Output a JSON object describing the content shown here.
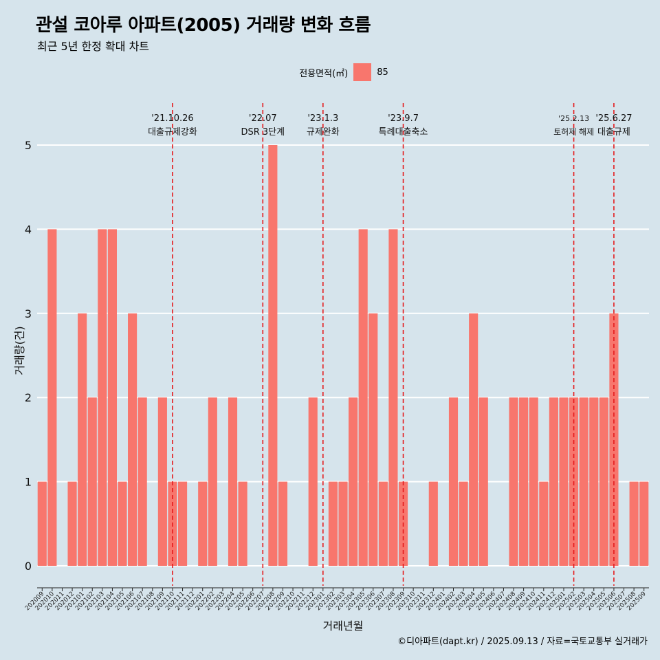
{
  "title": "관설 코아루 아파트(2005) 거래량 변화 흐름",
  "subtitle": "최근 5년 한정 확대 차트",
  "legend": {
    "title": "전용면적(㎡)",
    "items": [
      {
        "label": "85",
        "color": "#f8766d"
      }
    ]
  },
  "caption": "©디아파트(dapt.kr) / 2025.09.13 / 자료=국토교통부 실거래가",
  "colors": {
    "background": "#d6e4ec",
    "bar": "#f8766d",
    "grid": "#ffffff",
    "event_line": "#e41a1c"
  },
  "chart_data": {
    "type": "bar",
    "xlabel": "거래년월",
    "ylabel": "거래량(건)",
    "ylim": [
      0,
      5
    ],
    "yticks": [
      0,
      1,
      2,
      3,
      4,
      5
    ],
    "grid": true,
    "legend_position": "top",
    "categories": [
      "202009",
      "202010",
      "202011",
      "202012",
      "202101",
      "202102",
      "202103",
      "202104",
      "202105",
      "202106",
      "202107",
      "202108",
      "202109",
      "202110",
      "202111",
      "202112",
      "202201",
      "202202",
      "202203",
      "202204",
      "202205",
      "202206",
      "202207",
      "202208",
      "202209",
      "202210",
      "202211",
      "202212",
      "202301",
      "202302",
      "202303",
      "202304",
      "202305",
      "202306",
      "202307",
      "202308",
      "202309",
      "202310",
      "202311",
      "202312",
      "202401",
      "202402",
      "202403",
      "202404",
      "202405",
      "202406",
      "202407",
      "202408",
      "202409",
      "202410",
      "202411",
      "202412",
      "202501",
      "202502",
      "202503",
      "202504",
      "202505",
      "202506",
      "202507",
      "202508",
      "202509"
    ],
    "series": [
      {
        "name": "85",
        "values": [
          1,
          4,
          0,
          1,
          3,
          2,
          4,
          4,
          1,
          3,
          2,
          0,
          2,
          1,
          1,
          0,
          1,
          2,
          0,
          2,
          1,
          0,
          0,
          5,
          1,
          0,
          0,
          2,
          0,
          1,
          1,
          2,
          4,
          3,
          1,
          4,
          1,
          0,
          0,
          1,
          0,
          2,
          1,
          3,
          2,
          0,
          0,
          2,
          2,
          2,
          1,
          2,
          2,
          2,
          2,
          2,
          2,
          3,
          0,
          1,
          1
        ]
      }
    ],
    "annotations": [
      {
        "date": "'21.10.26",
        "label": "대출규제강화",
        "at": "202110"
      },
      {
        "date": "'22.07",
        "label": "DSR 3단계",
        "at": "202207"
      },
      {
        "date": "'23.1.3",
        "label": "규제완화",
        "at": "202301"
      },
      {
        "date": "'23.9.7",
        "label": "특례대출축소",
        "at": "202309"
      },
      {
        "date": "'25.2.13",
        "label": "토허제 해제",
        "at": "202502"
      },
      {
        "date": "'25.6.27",
        "label": "대출규제",
        "at": "202506"
      }
    ]
  }
}
